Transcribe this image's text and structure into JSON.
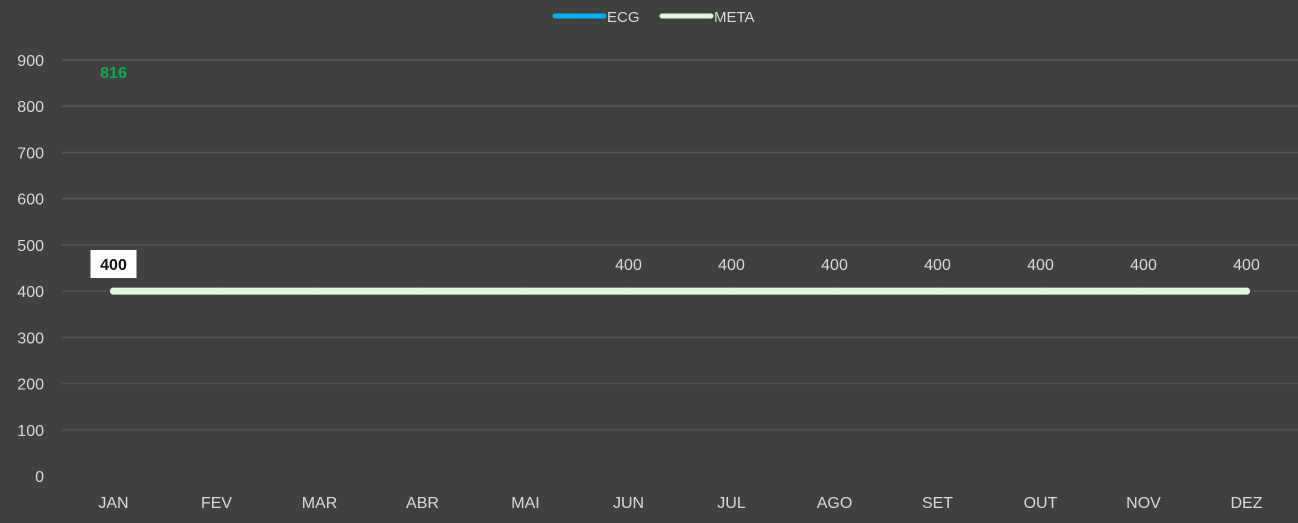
{
  "chart_data": {
    "type": "line",
    "title": "",
    "xlabel": "",
    "ylabel": "",
    "categories": [
      "JAN",
      "FEV",
      "MAR",
      "ABR",
      "MAI",
      "JUN",
      "JUL",
      "AGO",
      "SET",
      "OUT",
      "NOV",
      "DEZ"
    ],
    "ylim": [
      0,
      900
    ],
    "yticks": [
      "900",
      "800",
      "700",
      "600",
      "500",
      "400",
      "300",
      "200",
      "100",
      "0"
    ],
    "grid": true,
    "legend_position": "top-center",
    "series": [
      {
        "name": "ECG",
        "color": "#00b0f0",
        "values": [
          816,
          null,
          null,
          null,
          null,
          null,
          null,
          null,
          null,
          null,
          null,
          null
        ],
        "data_labels": [
          "816",
          "",
          "",
          "",
          "",
          "",
          "",
          "",
          "",
          "",
          "",
          ""
        ],
        "label_color": "#12a84c"
      },
      {
        "name": "META",
        "color": "#e2f7df",
        "values": [
          400,
          400,
          400,
          400,
          400,
          400,
          400,
          400,
          400,
          400,
          400,
          400
        ],
        "data_labels": [
          "400",
          "",
          "",
          "",
          "",
          "400",
          "400",
          "400",
          "400",
          "400",
          "400",
          "400"
        ]
      }
    ]
  }
}
